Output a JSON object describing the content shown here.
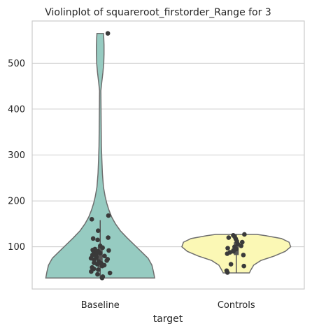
{
  "chart_data": {
    "type": "violin",
    "title": "Violinplot of squareroot_firstorder_Range for 3",
    "xlabel": "target",
    "ylabel": "",
    "ylim": [
      8,
      592
    ],
    "yticks": [
      100,
      200,
      300,
      400,
      500
    ],
    "grid": true,
    "categories": [
      "Baseline",
      "Controls"
    ],
    "colors": [
      "#96cbc1",
      "#fbf8b5"
    ],
    "violins": [
      {
        "name": "Baseline",
        "color": "#96cbc1",
        "profile": [
          [
            32,
            1.0
          ],
          [
            45,
            0.98
          ],
          [
            60,
            0.95
          ],
          [
            75,
            0.88
          ],
          [
            90,
            0.75
          ],
          [
            105,
            0.62
          ],
          [
            120,
            0.49
          ],
          [
            135,
            0.37
          ],
          [
            150,
            0.28
          ],
          [
            165,
            0.21
          ],
          [
            180,
            0.16
          ],
          [
            195,
            0.12
          ],
          [
            210,
            0.09
          ],
          [
            230,
            0.06
          ],
          [
            260,
            0.04
          ],
          [
            290,
            0.03
          ],
          [
            320,
            0.022
          ],
          [
            360,
            0.018
          ],
          [
            400,
            0.015
          ],
          [
            440,
            0.012
          ],
          [
            460,
            0.03
          ],
          [
            480,
            0.05
          ],
          [
            500,
            0.065
          ],
          [
            520,
            0.07
          ],
          [
            540,
            0.07
          ],
          [
            555,
            0.065
          ],
          [
            565,
            0.06
          ]
        ],
        "box": {
          "q1": 55,
          "median": 75,
          "q3": 100,
          "whisker_low": 32,
          "whisker_high": 158
        },
        "points": [
          565,
          168,
          160,
          135,
          120,
          118,
          115,
          102,
          98,
          95,
          93,
          92,
          90,
          88,
          86,
          84,
          82,
          80,
          78,
          76,
          75,
          73,
          72,
          70,
          68,
          65,
          64,
          62,
          60,
          58,
          55,
          52,
          50,
          46,
          43,
          40,
          35,
          32
        ]
      },
      {
        "name": "Controls",
        "color": "#fbf8b5",
        "profile": [
          [
            43,
            0.24
          ],
          [
            50,
            0.27
          ],
          [
            60,
            0.32
          ],
          [
            70,
            0.45
          ],
          [
            80,
            0.7
          ],
          [
            90,
            0.9
          ],
          [
            100,
            1.0
          ],
          [
            110,
            0.97
          ],
          [
            118,
            0.83
          ],
          [
            124,
            0.55
          ],
          [
            127,
            0.38
          ]
        ],
        "box": {
          "q1": 82,
          "median": 96,
          "q3": 110,
          "whisker_low": 43,
          "whisker_high": 127
        },
        "points": [
          127,
          125,
          122,
          120,
          117,
          112,
          110,
          106,
          102,
          100,
          97,
          95,
          92,
          90,
          88,
          85,
          82,
          62,
          58,
          48,
          44
        ]
      }
    ]
  }
}
